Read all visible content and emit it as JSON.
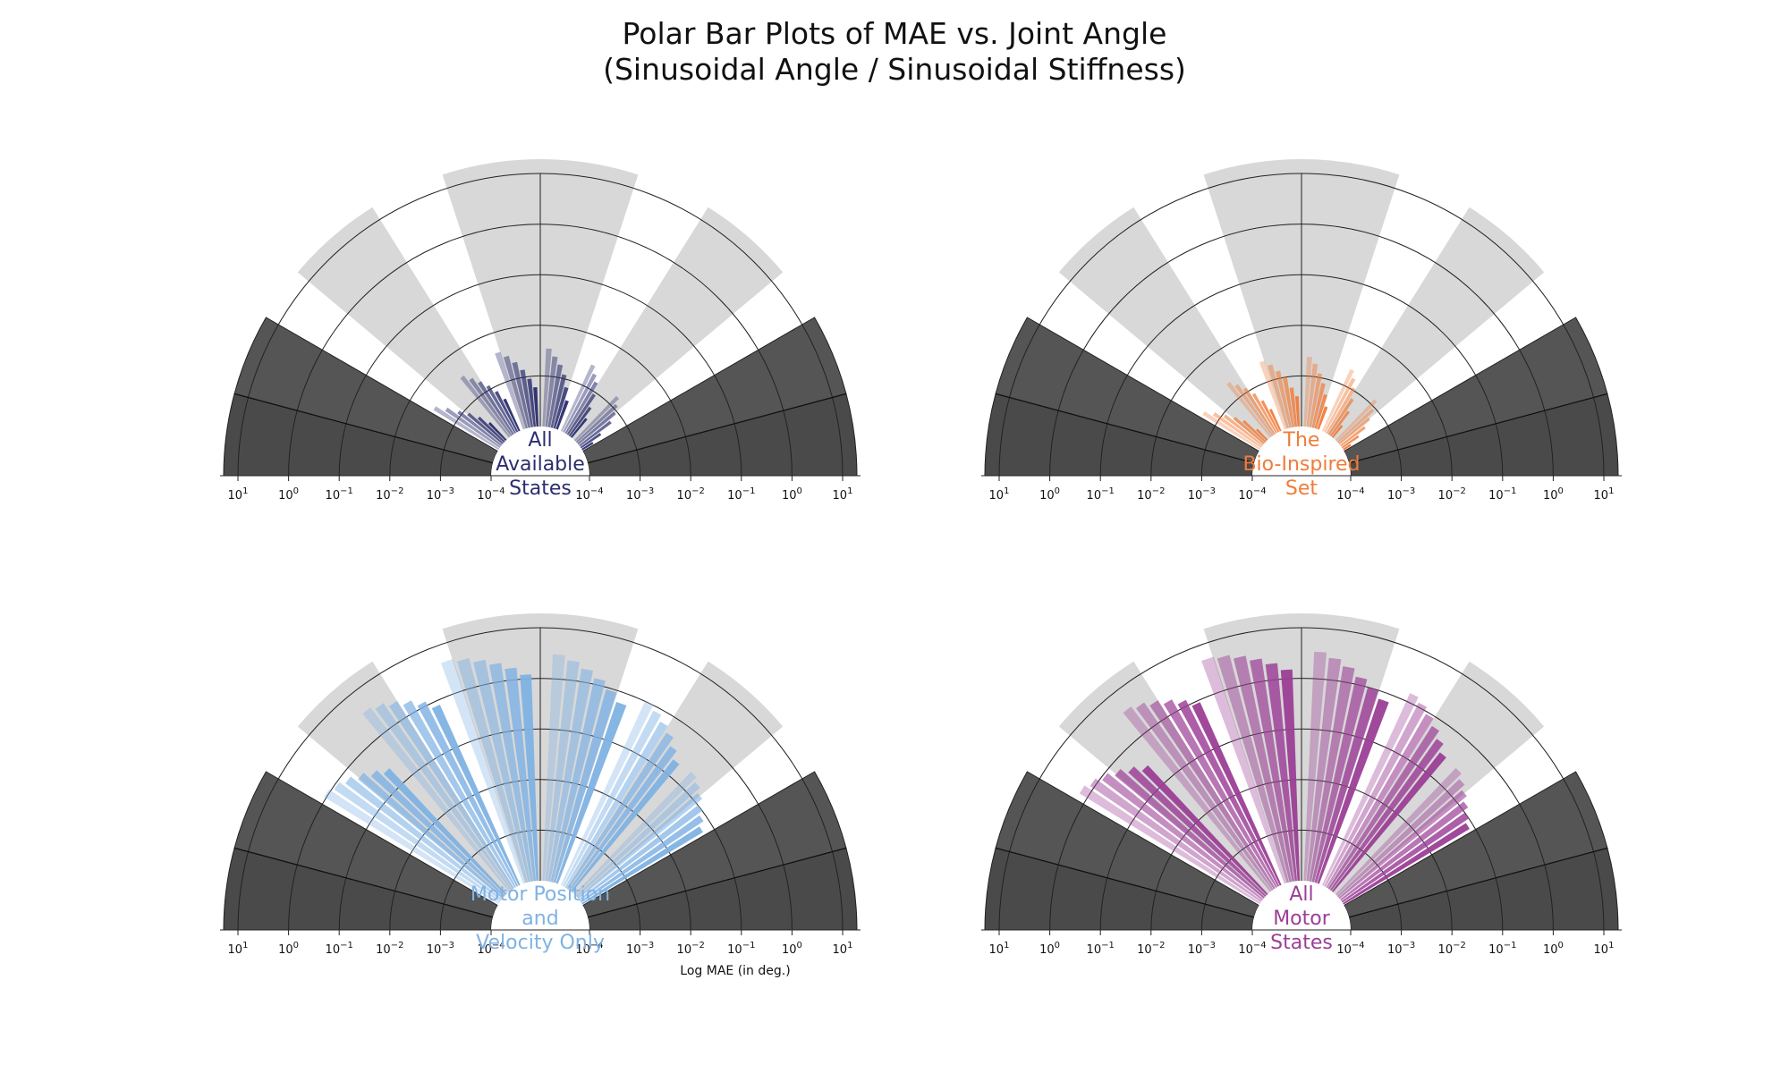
{
  "figure": {
    "title_line1": "Polar Bar Plots of MAE vs. Joint Angle",
    "title_line2": "(Sinusoidal Angle / Sinusoidal Stiffness)",
    "shared_xlabel": "Log MAE (in deg.)"
  },
  "chart_data": [
    {
      "type": "polar-bar",
      "label_lines": [
        "All",
        "Available",
        "States"
      ],
      "color": "#2b2d6e",
      "radial_axis": {
        "scale": "log",
        "range_exponent": [
          -4,
          1
        ],
        "tick_labels": [
          "10^1",
          "10^0",
          "10^-1",
          "10^-2",
          "10^-3",
          "10^-4"
        ]
      },
      "angle_sectors_shaded": [
        "light gray alternating sectors",
        "dark gray low-angle sectors"
      ],
      "series": [
        {
          "angle_groups": 6,
          "values": [
            [
              0.00018,
              0.0003,
              0.0006,
              0.0009,
              0.0012,
              0.0016
            ],
            [
              0.0003,
              0.0005,
              0.0009,
              0.0015,
              0.002,
              0.0028
            ],
            [
              0.0004,
              0.0007,
              0.0012,
              0.0018,
              0.0025,
              0.0035
            ],
            [
              0.0006,
              0.0009,
              0.0014,
              0.0021,
              0.003,
              0.004
            ],
            [
              0.0005,
              0.0008,
              0.0012,
              0.0017,
              0.0024,
              0.0033
            ],
            [
              0.0003,
              0.0005,
              0.0008,
              0.0012,
              0.002,
              0.0032
            ]
          ]
        }
      ]
    },
    {
      "type": "polar-bar",
      "label_lines": [
        "The",
        "Bio-Inspired",
        "Set"
      ],
      "color": "#f07c3a",
      "radial_axis": {
        "scale": "log",
        "range_exponent": [
          -4,
          1
        ],
        "tick_labels": [
          "10^1",
          "10^0",
          "10^-1",
          "10^-2",
          "10^-3",
          "10^-4"
        ]
      },
      "series": [
        {
          "angle_groups": 6,
          "values": [
            [
              0.00015,
              0.00025,
              0.0004,
              0.0006,
              0.0009,
              0.0013
            ],
            [
              0.0002,
              0.0004,
              0.0007,
              0.0011,
              0.0016,
              0.0022
            ],
            [
              0.0003,
              0.0005,
              0.0008,
              0.0012,
              0.0018,
              0.0024
            ],
            [
              0.0004,
              0.0006,
              0.001,
              0.0014,
              0.002,
              0.0026
            ],
            [
              0.0003,
              0.0005,
              0.0008,
              0.0012,
              0.0017,
              0.0023
            ],
            [
              0.0002,
              0.0004,
              0.0006,
              0.0009,
              0.0014,
              0.0021
            ]
          ]
        }
      ]
    },
    {
      "type": "polar-bar",
      "label_lines": [
        "Motor Position",
        "and",
        "Velocity Only"
      ],
      "color": "#7fb2e3",
      "radial_axis": {
        "scale": "log",
        "range_exponent": [
          -4,
          1
        ],
        "tick_labels": [
          "10^1",
          "10^0",
          "10^-1",
          "10^-2",
          "10^-3",
          "10^-4"
        ]
      },
      "series": [
        {
          "angle_groups": 6,
          "values": [
            [
              0.06,
              0.08,
              0.1,
              0.14,
              0.18,
              0.22
            ],
            [
              0.2,
              0.3,
              0.45,
              0.6,
              0.8,
              1.0
            ],
            [
              0.6,
              0.9,
              1.3,
              1.8,
              2.4,
              3.0
            ],
            [
              1.2,
              1.7,
              2.3,
              3.0,
              3.8,
              4.5
            ],
            [
              0.8,
              1.2,
              1.7,
              2.3,
              3.0,
              3.6
            ],
            [
              0.25,
              0.35,
              0.5,
              0.7,
              0.9,
              1.1
            ]
          ]
        }
      ]
    },
    {
      "type": "polar-bar",
      "label_lines": [
        "All",
        "Motor",
        "States"
      ],
      "color": "#9b3f96",
      "radial_axis": {
        "scale": "log",
        "range_exponent": [
          -4,
          1
        ],
        "tick_labels": [
          "10^1",
          "10^0",
          "10^-1",
          "10^-2",
          "10^-3",
          "10^-4"
        ]
      },
      "series": [
        {
          "angle_groups": 6,
          "values": [
            [
              0.08,
              0.1,
              0.13,
              0.17,
              0.22,
              0.28
            ],
            [
              0.3,
              0.45,
              0.65,
              0.9,
              1.2,
              1.5
            ],
            [
              0.7,
              1.0,
              1.4,
              2.0,
              2.7,
              3.4
            ],
            [
              1.5,
              2.1,
              2.8,
              3.6,
              4.4,
              5.0
            ],
            [
              0.9,
              1.3,
              1.8,
              2.4,
              3.1,
              3.8
            ],
            [
              0.3,
              0.45,
              0.65,
              0.9,
              1.2,
              1.5
            ]
          ]
        }
      ]
    }
  ]
}
